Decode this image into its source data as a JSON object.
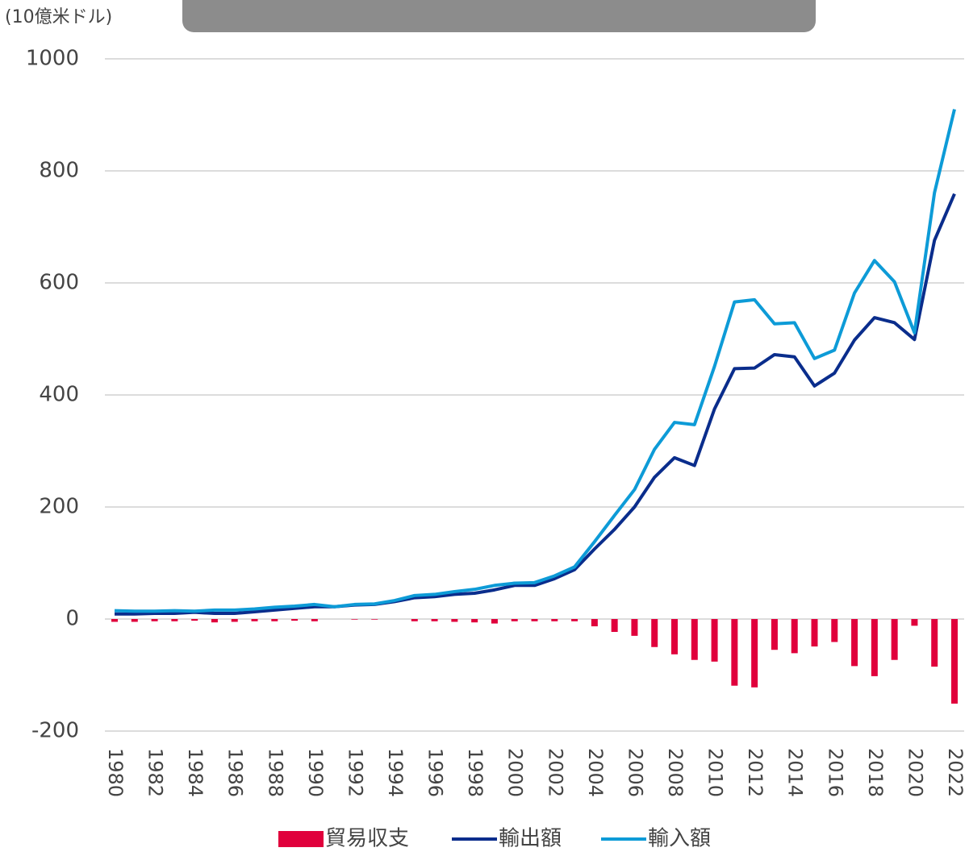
{
  "chart_data": {
    "type": "bar-line",
    "y_axis_label": "(10億米ドル)",
    "categories": [
      "1980",
      null,
      "1982",
      null,
      "1984",
      null,
      "1986",
      null,
      "1988",
      null,
      "1990",
      null,
      "1992",
      null,
      "1994",
      null,
      "1996",
      null,
      "1998",
      null,
      "2000",
      null,
      "2002",
      null,
      "2004",
      null,
      "2006",
      null,
      "2008",
      null,
      "2010",
      null,
      "2012",
      null,
      "2014",
      null,
      "2016",
      null,
      "2018",
      null,
      "2020",
      null,
      "2022"
    ],
    "series": [
      {
        "name": "貿易収支",
        "type": "bar",
        "color": "#e0003c",
        "values": [
          -5,
          -5,
          -4,
          -4,
          -3,
          -6,
          -5,
          -4,
          -4,
          -3,
          -4,
          0,
          -1,
          -1,
          0,
          -4,
          -4,
          -5,
          -6,
          -8,
          -4,
          -4,
          -4,
          -4,
          -13,
          -23,
          -30,
          -50,
          -63,
          -73,
          -76,
          -119,
          -122,
          -55,
          -61,
          -49,
          -41,
          -84,
          -102,
          -73,
          -12,
          -85,
          -151
        ]
      },
      {
        "name": "輸出額",
        "type": "line",
        "color": "#0a2d8c",
        "values": [
          9,
          9,
          10,
          10,
          12,
          10,
          10,
          13,
          16,
          19,
          22,
          22,
          25,
          26,
          31,
          38,
          40,
          44,
          46,
          52,
          60,
          60,
          72,
          88,
          125,
          160,
          200,
          253,
          288,
          274,
          375,
          447,
          448,
          472,
          468,
          416,
          439,
          498,
          538,
          529,
          499,
          676,
          759
        ]
      },
      {
        "name": "輸入額",
        "type": "line",
        "color": "#0d9bd7",
        "values": [
          15,
          14,
          14,
          15,
          14,
          16,
          16,
          18,
          21,
          23,
          26,
          22,
          26,
          27,
          33,
          42,
          44,
          49,
          53,
          60,
          64,
          65,
          77,
          93,
          138,
          185,
          231,
          303,
          351,
          347,
          451,
          566,
          570,
          527,
          529,
          465,
          480,
          582,
          640,
          602,
          511,
          761,
          910
        ]
      }
    ],
    "ylim": [
      -200,
      1000
    ],
    "yticks": [
      -200,
      0,
      200,
      400,
      600,
      800,
      1000
    ],
    "grid": true
  }
}
